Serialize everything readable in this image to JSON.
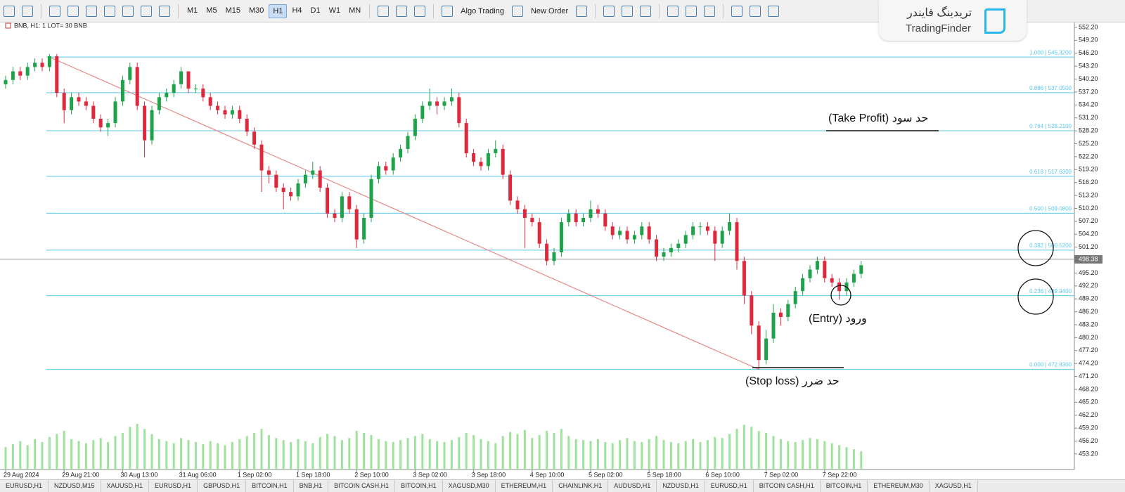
{
  "toolbar": {
    "timeframes": [
      "M1",
      "M5",
      "M15",
      "M30",
      "H1",
      "H4",
      "D1",
      "W1",
      "MN"
    ],
    "active_timeframe": 4,
    "algo_trading": "Algo Trading",
    "new_order": "New Order"
  },
  "chart_header": "BNB, H1: 1 LOT= 30 BNB",
  "watermark": {
    "fa": "تریدینگ فایندر",
    "en": "TradingFinder"
  },
  "annotations": {
    "take_profit": "حد سود (Take Profit)",
    "entry": "ورود (Entry)",
    "stop_loss": "حد ضرر (Stop loss)"
  },
  "tabs": [
    "EURUSD,H1",
    "NZDUSD,M15",
    "XAUUSD,H1",
    "EURUSD,H1",
    "GBPUSD,H1",
    "BITCOIN,H1",
    "BNB,H1",
    "BITCOIN CASH,H1",
    "BITCOIN,H1",
    "XAGUSD,M30",
    "ETHEREUM,H1",
    "CHAINLINK,H1",
    "AUDUSD,H1",
    "NZDUSD,H1",
    "EURUSD,H1",
    "BITCOIN CASH,H1",
    "BITCOIN,H1",
    "ETHEREUM,M30",
    "XAGUSD,H1"
  ],
  "chart_data": {
    "type": "candlestick",
    "categories": [
      "29 Aug 2024",
      null,
      null,
      null,
      null,
      null,
      null,
      null,
      "29 Aug 21:00",
      null,
      null,
      null,
      null,
      null,
      null,
      null,
      "30 Aug 13:00",
      null,
      null,
      null,
      null,
      null,
      null,
      null,
      "31 Aug 06:00",
      null,
      null,
      null,
      null,
      null,
      null,
      null,
      "1 Sep 02:00",
      null,
      null,
      null,
      null,
      null,
      null,
      null,
      "1 Sep 18:00",
      null,
      null,
      null,
      null,
      null,
      null,
      null,
      "2 Sep 10:00",
      null,
      null,
      null,
      null,
      null,
      null,
      null,
      "3 Sep 02:00",
      null,
      null,
      null,
      null,
      null,
      null,
      null,
      "3 Sep 18:00",
      null,
      null,
      null,
      null,
      null,
      null,
      null,
      "4 Sep 10:00",
      null,
      null,
      null,
      null,
      null,
      null,
      null,
      "5 Sep 02:00",
      null,
      null,
      null,
      null,
      null,
      null,
      null,
      "5 Sep 18:00",
      null,
      null,
      null,
      null,
      null,
      null,
      null,
      "6 Sep 10:00",
      null,
      null,
      null,
      null,
      null,
      null,
      null,
      "7 Sep 02:00",
      null,
      null,
      null,
      null,
      null,
      null,
      null,
      "7 Sep 22:00",
      null,
      null,
      null,
      null,
      null
    ],
    "ohlc": [
      [
        539,
        541,
        538,
        540
      ],
      [
        540,
        543,
        539,
        542
      ],
      [
        542,
        543,
        540,
        541
      ],
      [
        541,
        544,
        540,
        543
      ],
      [
        543,
        545,
        542,
        544
      ],
      [
        544,
        545,
        542,
        543
      ],
      [
        543,
        546,
        542,
        545.5
      ],
      [
        545.5,
        546,
        536,
        537
      ],
      [
        537,
        538,
        530,
        533
      ],
      [
        533,
        537,
        532,
        536
      ],
      [
        536,
        537,
        534,
        535
      ],
      [
        535,
        536,
        533,
        534
      ],
      [
        534,
        535,
        530,
        531
      ],
      [
        531,
        532,
        528,
        529
      ],
      [
        529,
        531,
        527,
        530
      ],
      [
        530,
        536,
        529,
        535
      ],
      [
        535,
        541,
        534,
        540
      ],
      [
        540,
        544,
        539,
        543
      ],
      [
        543,
        544,
        533,
        534
      ],
      [
        534,
        535,
        522,
        526
      ],
      [
        526,
        534,
        525,
        533
      ],
      [
        533,
        537,
        532,
        536
      ],
      [
        536,
        538,
        535,
        537
      ],
      [
        537,
        540,
        536,
        539
      ],
      [
        539,
        543,
        538,
        542
      ],
      [
        542,
        542,
        537,
        538
      ],
      [
        538,
        539,
        537,
        538
      ],
      [
        538,
        539,
        535,
        536
      ],
      [
        536,
        537,
        533,
        534
      ],
      [
        534,
        535,
        532,
        533
      ],
      [
        533,
        534,
        531,
        532
      ],
      [
        532,
        534,
        531,
        533
      ],
      [
        533,
        534,
        530,
        531
      ],
      [
        531,
        532,
        527,
        528
      ],
      [
        528,
        529,
        524,
        525
      ],
      [
        525,
        526,
        514,
        519
      ],
      [
        519,
        520,
        516,
        518
      ],
      [
        518,
        519,
        514,
        515
      ],
      [
        515,
        516,
        510,
        514
      ],
      [
        514,
        515,
        512,
        513
      ],
      [
        513,
        517,
        512,
        516
      ],
      [
        516,
        519,
        515,
        518
      ],
      [
        518,
        521,
        517,
        519
      ],
      [
        519,
        520,
        514,
        515
      ],
      [
        515,
        516,
        508,
        509
      ],
      [
        509,
        510,
        507,
        508
      ],
      [
        508,
        514,
        507,
        513
      ],
      [
        513,
        514,
        509,
        510
      ],
      [
        510,
        511,
        501,
        503
      ],
      [
        503,
        509,
        502,
        508
      ],
      [
        508,
        518,
        507,
        517
      ],
      [
        517,
        521,
        516,
        520
      ],
      [
        520,
        521,
        518,
        519
      ],
      [
        519,
        523,
        518,
        522
      ],
      [
        522,
        525,
        521,
        524
      ],
      [
        524,
        528,
        523,
        527
      ],
      [
        527,
        532,
        526,
        531
      ],
      [
        531,
        535,
        530,
        534
      ],
      [
        534,
        538,
        533,
        535
      ],
      [
        535,
        536,
        532,
        534
      ],
      [
        534,
        536,
        533,
        535
      ],
      [
        535,
        538,
        534,
        536
      ],
      [
        536,
        537,
        529,
        530
      ],
      [
        530,
        531,
        522,
        523
      ],
      [
        523,
        524,
        520,
        521
      ],
      [
        521,
        522,
        519,
        520
      ],
      [
        520,
        524,
        519,
        523
      ],
      [
        523,
        526,
        522,
        524
      ],
      [
        524,
        525,
        517,
        518
      ],
      [
        518,
        519,
        511,
        512
      ],
      [
        512,
        513,
        509,
        510
      ],
      [
        510,
        511,
        501,
        508
      ],
      [
        508,
        509,
        506,
        507
      ],
      [
        507,
        508,
        501,
        502
      ],
      [
        502,
        503,
        497,
        498
      ],
      [
        498,
        501,
        497,
        500
      ],
      [
        500,
        508,
        499,
        507
      ],
      [
        507,
        510,
        506,
        509
      ],
      [
        509,
        510,
        506,
        507
      ],
      [
        507,
        509,
        506,
        508
      ],
      [
        508,
        512,
        507,
        510
      ],
      [
        510,
        511,
        508,
        509
      ],
      [
        509,
        510,
        505,
        506
      ],
      [
        506,
        507,
        503,
        504
      ],
      [
        504,
        506,
        503,
        505
      ],
      [
        505,
        506,
        502,
        503
      ],
      [
        503,
        505,
        502,
        504
      ],
      [
        504,
        507,
        503,
        506
      ],
      [
        506,
        507,
        502,
        503
      ],
      [
        503,
        504,
        498,
        499
      ],
      [
        499,
        501,
        498,
        500
      ],
      [
        500,
        502,
        499,
        501
      ],
      [
        501,
        503,
        500,
        502
      ],
      [
        502,
        505,
        501,
        504
      ],
      [
        504,
        507,
        503,
        506
      ],
      [
        506,
        507,
        504,
        506
      ],
      [
        506,
        507,
        504,
        505
      ],
      [
        505,
        506,
        498,
        502
      ],
      [
        502,
        506,
        501,
        505
      ],
      [
        505,
        509,
        504,
        507
      ],
      [
        507,
        508,
        496,
        498
      ],
      [
        498,
        499,
        488,
        490
      ],
      [
        490,
        491,
        481,
        483
      ],
      [
        483,
        484,
        472.83,
        475
      ],
      [
        475,
        482,
        474,
        480
      ],
      [
        480,
        488,
        479,
        486
      ],
      [
        486,
        487,
        483,
        485
      ],
      [
        485,
        489,
        484,
        488
      ],
      [
        488,
        492,
        487,
        491
      ],
      [
        491,
        495,
        490,
        494
      ],
      [
        494,
        497,
        493,
        496
      ],
      [
        496,
        499,
        495,
        498
      ],
      [
        498,
        499,
        493,
        494
      ],
      [
        494,
        495,
        492,
        493
      ],
      [
        493,
        494,
        489,
        491
      ],
      [
        491,
        494,
        490,
        493
      ],
      [
        493,
        496,
        492,
        495
      ],
      [
        495,
        498,
        494,
        497
      ]
    ],
    "volumes": [
      22,
      25,
      28,
      24,
      30,
      27,
      32,
      35,
      38,
      30,
      28,
      26,
      29,
      31,
      27,
      33,
      36,
      42,
      45,
      40,
      35,
      30,
      28,
      26,
      31,
      29,
      27,
      25,
      28,
      26,
      24,
      27,
      30,
      33,
      36,
      40,
      34,
      31,
      29,
      27,
      30,
      28,
      26,
      32,
      35,
      33,
      29,
      31,
      38,
      36,
      34,
      30,
      28,
      27,
      29,
      31,
      33,
      35,
      30,
      28,
      27,
      29,
      32,
      36,
      34,
      30,
      28,
      26,
      33,
      37,
      35,
      39,
      31,
      34,
      38,
      36,
      40,
      33,
      30,
      29,
      28,
      30,
      27,
      26,
      29,
      31,
      28,
      27,
      30,
      33,
      29,
      27,
      26,
      28,
      30,
      27,
      29,
      32,
      31,
      35,
      40,
      44,
      42,
      38,
      36,
      33,
      30,
      28,
      27,
      29,
      31,
      30,
      28,
      26,
      24,
      22,
      20,
      18
    ],
    "ylim": [
      449.6,
      553.5
    ],
    "yticks": [
      {
        "value": 552.2,
        "label": "552.20"
      },
      {
        "value": 549.2,
        "label": "549.20"
      },
      {
        "value": 546.2,
        "label": "546.20"
      },
      {
        "value": 543.2,
        "label": "543.20"
      },
      {
        "value": 540.2,
        "label": "540.20"
      },
      {
        "value": 537.2,
        "label": "537.20"
      },
      {
        "value": 534.2,
        "label": "534.20"
      },
      {
        "value": 531.2,
        "label": "531.20"
      },
      {
        "value": 528.2,
        "label": "528.20"
      },
      {
        "value": 525.2,
        "label": "525.20"
      },
      {
        "value": 522.2,
        "label": "522.20"
      },
      {
        "value": 519.2,
        "label": "519.20"
      },
      {
        "value": 516.2,
        "label": "516.20"
      },
      {
        "value": 513.2,
        "label": "513.20"
      },
      {
        "value": 510.2,
        "label": "510.20"
      },
      {
        "value": 507.2,
        "label": "507.20"
      },
      {
        "value": 504.2,
        "label": "504.20"
      },
      {
        "value": 501.2,
        "label": "501.20"
      },
      {
        "value": 498.2,
        "label": "498.20"
      },
      {
        "value": 495.2,
        "label": "495.20"
      },
      {
        "value": 492.2,
        "label": "492.20"
      },
      {
        "value": 489.2,
        "label": "489.20"
      },
      {
        "value": 486.2,
        "label": "486.20"
      },
      {
        "value": 483.2,
        "label": "483.20"
      },
      {
        "value": 480.2,
        "label": "480.20"
      },
      {
        "value": 477.2,
        "label": "477.20"
      },
      {
        "value": 474.2,
        "label": "474.20"
      },
      {
        "value": 471.2,
        "label": "471.20"
      },
      {
        "value": 468.2,
        "label": "468.20"
      },
      {
        "value": 465.2,
        "label": "465.20"
      },
      {
        "value": 462.2,
        "label": "462.20"
      },
      {
        "value": 459.2,
        "label": "459.20"
      },
      {
        "value": 456.2,
        "label": "456.20"
      },
      {
        "value": 453.2,
        "label": "453.20"
      }
    ],
    "fib_levels": [
      {
        "value": 545.32,
        "label": "1.000 | 545.3200"
      },
      {
        "value": 537.05,
        "label": "0.886 | 537.0500"
      },
      {
        "value": 528.21,
        "label": "0.764 | 528.2100"
      },
      {
        "value": 517.63,
        "label": "0.618 | 517.6300"
      },
      {
        "value": 509.08,
        "label": "0.500 | 509.0800"
      },
      {
        "value": 500.52,
        "label": "0.382 | 500.5200"
      },
      {
        "value": 489.94,
        "label": "0.236 | 489.9400"
      },
      {
        "value": 472.83,
        "label": "0.000 | 472.8300"
      }
    ],
    "trendline": {
      "x": [
        6,
        103
      ],
      "y": [
        545.32,
        472.83
      ]
    },
    "current_price": 498.38,
    "bull_color": "#1fa34a",
    "bear_color": "#e0283c",
    "volume_color": "#9ee39b",
    "fib_color": "#5cc8ea",
    "trend_color": "#e88a8a"
  }
}
